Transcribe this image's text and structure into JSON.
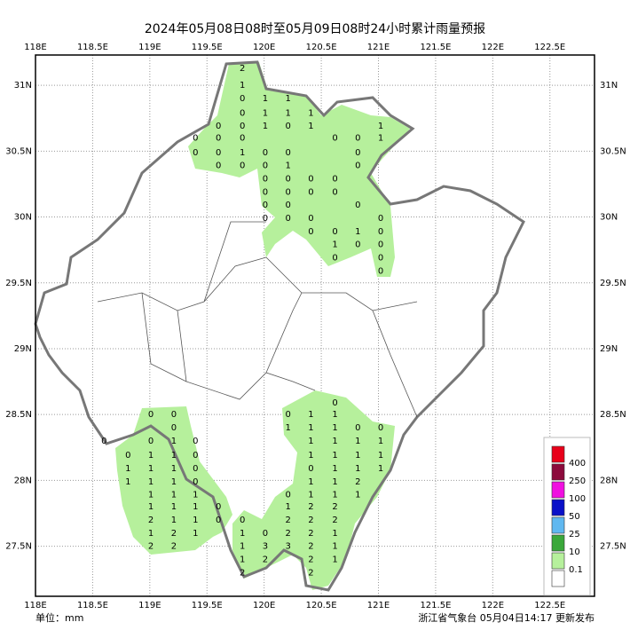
{
  "header": {
    "title": "2024年05月08日08时至05月09日08时24小时累计雨量预报"
  },
  "map": {
    "xlim": [
      118,
      122.89
    ],
    "ylim": [
      27.12,
      31.23
    ],
    "xticks": [
      {
        "value": 118,
        "label": "118E"
      },
      {
        "value": 118.5,
        "label": "118.5E"
      },
      {
        "value": 119,
        "label": "119E"
      },
      {
        "value": 119.5,
        "label": "119.5E"
      },
      {
        "value": 120,
        "label": "120E"
      },
      {
        "value": 120.5,
        "label": "120.5E"
      },
      {
        "value": 121,
        "label": "121E"
      },
      {
        "value": 121.5,
        "label": "121.5E"
      },
      {
        "value": 122,
        "label": "122E"
      },
      {
        "value": 122.5,
        "label": "122.5E"
      }
    ],
    "yticks": [
      {
        "value": 31,
        "label": "31N"
      },
      {
        "value": 30.5,
        "label": "30.5N"
      },
      {
        "value": 30,
        "label": "30N"
      },
      {
        "value": 29.5,
        "label": "29.5N"
      },
      {
        "value": 29,
        "label": "29N"
      },
      {
        "value": 28.5,
        "label": "28.5N"
      },
      {
        "value": 28,
        "label": "28N"
      },
      {
        "value": 27.5,
        "label": "27.5N"
      }
    ],
    "stations": [
      [
        119.81,
        31.13,
        2
      ],
      [
        119.81,
        31.0,
        1
      ],
      [
        119.81,
        30.9,
        0
      ],
      [
        120.01,
        30.9,
        1
      ],
      [
        120.21,
        30.9,
        1
      ],
      [
        119.81,
        30.79,
        0
      ],
      [
        120.01,
        30.79,
        1
      ],
      [
        120.21,
        30.79,
        1
      ],
      [
        120.41,
        30.79,
        1
      ],
      [
        119.81,
        30.69,
        0
      ],
      [
        120.01,
        30.69,
        1
      ],
      [
        120.21,
        30.69,
        0
      ],
      [
        120.41,
        30.69,
        1
      ],
      [
        119.6,
        30.69,
        0
      ],
      [
        119.6,
        30.6,
        0
      ],
      [
        119.4,
        30.6,
        0
      ],
      [
        119.4,
        30.49,
        0
      ],
      [
        119.6,
        30.49,
        0
      ],
      [
        119.81,
        30.6,
        0
      ],
      [
        119.81,
        30.49,
        1
      ],
      [
        119.81,
        30.39,
        0
      ],
      [
        119.6,
        30.39,
        0
      ],
      [
        120.01,
        30.49,
        0
      ],
      [
        120.21,
        30.49,
        0
      ],
      [
        120.21,
        30.39,
        1
      ],
      [
        120.01,
        30.39,
        0
      ],
      [
        120.62,
        30.6,
        0
      ],
      [
        120.82,
        30.6,
        0
      ],
      [
        121.02,
        30.69,
        1
      ],
      [
        121.02,
        30.6,
        1
      ],
      [
        120.82,
        30.49,
        0
      ],
      [
        120.82,
        30.39,
        0
      ],
      [
        120.01,
        30.29,
        0
      ],
      [
        120.21,
        30.29,
        0
      ],
      [
        120.41,
        30.29,
        0
      ],
      [
        120.62,
        30.29,
        0
      ],
      [
        120.01,
        30.19,
        0
      ],
      [
        120.21,
        30.19,
        0
      ],
      [
        120.41,
        30.19,
        0
      ],
      [
        120.62,
        30.19,
        0
      ],
      [
        120.01,
        30.09,
        0
      ],
      [
        120.21,
        30.09,
        0
      ],
      [
        120.82,
        30.09,
        0
      ],
      [
        120.01,
        29.99,
        0
      ],
      [
        120.21,
        29.99,
        0
      ],
      [
        120.41,
        29.99,
        0
      ],
      [
        121.02,
        29.99,
        0
      ],
      [
        120.41,
        29.89,
        0
      ],
      [
        120.62,
        29.89,
        0
      ],
      [
        120.82,
        29.89,
        1
      ],
      [
        121.02,
        29.89,
        0
      ],
      [
        120.62,
        29.79,
        1
      ],
      [
        120.82,
        29.79,
        0
      ],
      [
        121.02,
        29.79,
        0
      ],
      [
        120.62,
        29.69,
        0
      ],
      [
        121.02,
        29.69,
        0
      ],
      [
        121.02,
        29.59,
        0
      ],
      [
        119.01,
        28.5,
        0
      ],
      [
        119.21,
        28.5,
        0
      ],
      [
        119.21,
        28.4,
        0
      ],
      [
        118.6,
        28.3,
        0
      ],
      [
        119.01,
        28.3,
        0
      ],
      [
        119.21,
        28.3,
        1
      ],
      [
        119.4,
        28.3,
        0
      ],
      [
        118.81,
        28.19,
        0
      ],
      [
        119.01,
        28.19,
        1
      ],
      [
        119.21,
        28.19,
        1
      ],
      [
        119.4,
        28.19,
        0
      ],
      [
        118.81,
        28.09,
        1
      ],
      [
        119.01,
        28.09,
        1
      ],
      [
        119.21,
        28.09,
        1
      ],
      [
        119.4,
        28.09,
        0
      ],
      [
        118.81,
        27.99,
        1
      ],
      [
        119.01,
        27.99,
        1
      ],
      [
        119.21,
        27.99,
        1
      ],
      [
        119.4,
        27.99,
        0
      ],
      [
        119.01,
        27.89,
        1
      ],
      [
        119.21,
        27.89,
        1
      ],
      [
        119.4,
        27.89,
        1
      ],
      [
        119.01,
        27.8,
        1
      ],
      [
        119.21,
        27.8,
        1
      ],
      [
        119.4,
        27.8,
        1
      ],
      [
        119.6,
        27.8,
        0
      ],
      [
        119.01,
        27.7,
        2
      ],
      [
        119.21,
        27.7,
        1
      ],
      [
        119.4,
        27.7,
        1
      ],
      [
        119.6,
        27.7,
        0
      ],
      [
        119.01,
        27.6,
        1
      ],
      [
        119.21,
        27.6,
        2
      ],
      [
        119.4,
        27.6,
        1
      ],
      [
        119.01,
        27.5,
        2
      ],
      [
        119.21,
        27.5,
        2
      ],
      [
        119.81,
        27.7,
        0
      ],
      [
        119.81,
        27.6,
        1
      ],
      [
        120.01,
        27.6,
        0
      ],
      [
        119.81,
        27.5,
        1
      ],
      [
        120.01,
        27.5,
        3
      ],
      [
        119.81,
        27.4,
        1
      ],
      [
        120.01,
        27.4,
        2
      ],
      [
        119.81,
        27.3,
        2
      ],
      [
        120.21,
        28.5,
        0
      ],
      [
        120.41,
        28.5,
        1
      ],
      [
        120.62,
        28.59,
        0
      ],
      [
        120.21,
        28.4,
        1
      ],
      [
        120.41,
        28.4,
        1
      ],
      [
        120.62,
        28.5,
        1
      ],
      [
        120.62,
        28.4,
        1
      ],
      [
        120.82,
        28.4,
        0
      ],
      [
        121.02,
        28.4,
        0
      ],
      [
        120.41,
        28.3,
        1
      ],
      [
        120.62,
        28.3,
        1
      ],
      [
        120.82,
        28.3,
        1
      ],
      [
        121.02,
        28.3,
        1
      ],
      [
        120.41,
        28.19,
        1
      ],
      [
        120.62,
        28.19,
        1
      ],
      [
        120.82,
        28.19,
        1
      ],
      [
        121.02,
        28.19,
        1
      ],
      [
        120.41,
        28.09,
        0
      ],
      [
        120.62,
        28.09,
        1
      ],
      [
        120.82,
        28.09,
        1
      ],
      [
        121.02,
        28.09,
        1
      ],
      [
        120.41,
        27.99,
        1
      ],
      [
        120.62,
        27.99,
        1
      ],
      [
        120.82,
        27.99,
        2
      ],
      [
        120.21,
        27.89,
        0
      ],
      [
        120.41,
        27.89,
        1
      ],
      [
        120.62,
        27.89,
        1
      ],
      [
        120.82,
        27.89,
        1
      ],
      [
        120.21,
        27.8,
        1
      ],
      [
        120.41,
        27.8,
        2
      ],
      [
        120.62,
        27.8,
        2
      ],
      [
        120.21,
        27.7,
        2
      ],
      [
        120.41,
        27.7,
        2
      ],
      [
        120.62,
        27.7,
        2
      ],
      [
        120.21,
        27.6,
        2
      ],
      [
        120.41,
        27.6,
        2
      ],
      [
        120.62,
        27.6,
        1
      ],
      [
        120.21,
        27.5,
        3
      ],
      [
        120.41,
        27.5,
        2
      ],
      [
        120.62,
        27.5,
        1
      ],
      [
        120.41,
        27.4,
        2
      ],
      [
        120.62,
        27.4,
        1
      ],
      [
        120.41,
        27.3,
        2
      ]
    ]
  },
  "legend": {
    "colors": [
      "#e8001a",
      "#8c0a3c",
      "#f010e0",
      "#0a10c8",
      "#60b8f0",
      "#3aa83a",
      "#b6f09c",
      "#ffffff"
    ],
    "labels": [
      "400",
      "250",
      "100",
      "50",
      "25",
      "10",
      "0.1"
    ]
  },
  "footer": {
    "unit": "单位：mm",
    "source": "浙江省气象台 05月04日14:17 更新发布"
  }
}
